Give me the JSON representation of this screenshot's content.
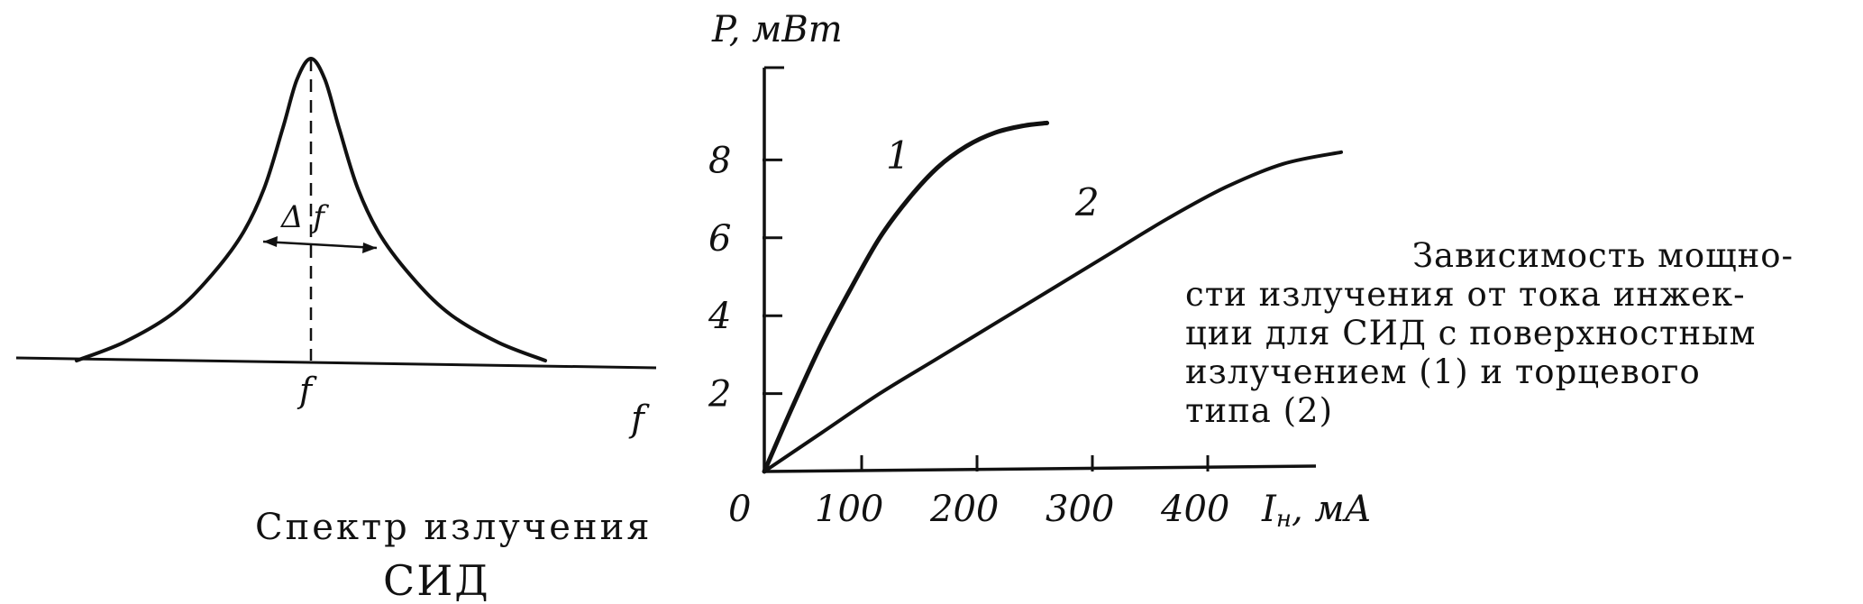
{
  "chart_data": [
    {
      "type": "line",
      "title": "",
      "caption": [
        "Спектр излучения",
        "СИД"
      ],
      "xlabel": "f",
      "center_label": "f",
      "bandwidth_label": "Δ f",
      "series": [
        {
          "x": [
            -1.0,
            -0.8,
            -0.6,
            -0.45,
            -0.3,
            -0.2,
            -0.12,
            -0.06,
            0.0,
            0.06,
            0.12,
            0.2,
            0.3,
            0.45,
            0.6,
            0.8,
            1.0
          ],
          "values": [
            0.0,
            0.06,
            0.15,
            0.26,
            0.41,
            0.57,
            0.77,
            0.93,
            1.0,
            0.93,
            0.77,
            0.57,
            0.41,
            0.26,
            0.15,
            0.06,
            0.0
          ]
        }
      ]
    },
    {
      "type": "line",
      "title": "",
      "ylabel": "P, мВт",
      "xlabel": "I",
      "xlabel_subscript": "н",
      "xlabel_unit": ", мА",
      "origin_label": "0",
      "x_ticks": [
        100,
        200,
        300,
        400
      ],
      "y_ticks": [
        2,
        4,
        6,
        8
      ],
      "xlim": [
        0,
        480
      ],
      "ylim": [
        0,
        10
      ],
      "series": [
        {
          "name": "1",
          "x": [
            0,
            25,
            50,
            75,
            100,
            125,
            150,
            175,
            200,
            225,
            245
          ],
          "values": [
            0,
            1.7,
            3.3,
            4.7,
            6.0,
            7.0,
            7.8,
            8.35,
            8.7,
            8.88,
            8.95
          ]
        },
        {
          "name": "2",
          "x": [
            0,
            50,
            100,
            150,
            200,
            250,
            300,
            350,
            400,
            450,
            500
          ],
          "values": [
            0,
            1.0,
            2.0,
            2.9,
            3.8,
            4.7,
            5.6,
            6.5,
            7.3,
            7.9,
            8.2
          ]
        }
      ]
    }
  ],
  "right_caption": {
    "lines": [
      "Зависимость мощно-",
      "сти излучения от тока инжек-",
      "ции для СИД с поверхностным",
      "излучением (1)  и  торцевого",
      "типа (2)"
    ]
  }
}
